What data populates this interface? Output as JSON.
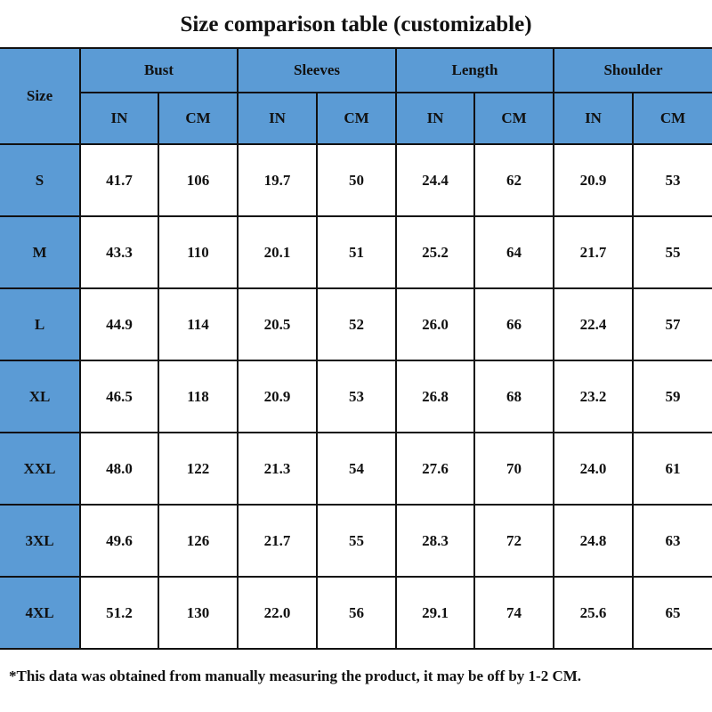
{
  "title": "Size comparison table (customizable)",
  "colors": {
    "header_bg": "#5b9bd5",
    "border": "#111111"
  },
  "table": {
    "size_header": "Size",
    "groups": [
      "Bust",
      "Sleeves",
      "Length",
      "Shoulder"
    ],
    "units": [
      "IN",
      "CM"
    ],
    "rows": [
      {
        "size": "S",
        "values": [
          "41.7",
          "106",
          "19.7",
          "50",
          "24.4",
          "62",
          "20.9",
          "53"
        ]
      },
      {
        "size": "M",
        "values": [
          "43.3",
          "110",
          "20.1",
          "51",
          "25.2",
          "64",
          "21.7",
          "55"
        ]
      },
      {
        "size": "L",
        "values": [
          "44.9",
          "114",
          "20.5",
          "52",
          "26.0",
          "66",
          "22.4",
          "57"
        ]
      },
      {
        "size": "XL",
        "values": [
          "46.5",
          "118",
          "20.9",
          "53",
          "26.8",
          "68",
          "23.2",
          "59"
        ]
      },
      {
        "size": "XXL",
        "values": [
          "48.0",
          "122",
          "21.3",
          "54",
          "27.6",
          "70",
          "24.0",
          "61"
        ]
      },
      {
        "size": "3XL",
        "values": [
          "49.6",
          "126",
          "21.7",
          "55",
          "28.3",
          "72",
          "24.8",
          "63"
        ]
      },
      {
        "size": "4XL",
        "values": [
          "51.2",
          "130",
          "22.0",
          "56",
          "29.1",
          "74",
          "25.6",
          "65"
        ]
      }
    ]
  },
  "footnote": "*This data was obtained from manually measuring the product, it may be off by 1-2 CM."
}
